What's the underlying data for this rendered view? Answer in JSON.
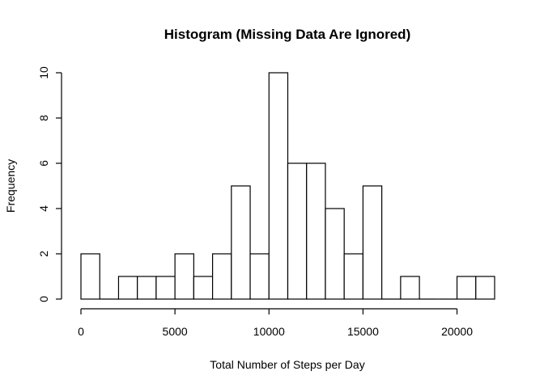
{
  "chart_data": {
    "type": "bar",
    "title": "Histogram (Missing Data Are Ignored)",
    "xlabel": "Total Number of Steps per Day",
    "ylabel": "Frequency",
    "bin_width": 1000,
    "bins": [
      {
        "start": 0,
        "end": 1000,
        "count": 2
      },
      {
        "start": 1000,
        "end": 2000,
        "count": 0
      },
      {
        "start": 2000,
        "end": 3000,
        "count": 1
      },
      {
        "start": 3000,
        "end": 4000,
        "count": 1
      },
      {
        "start": 4000,
        "end": 5000,
        "count": 1
      },
      {
        "start": 5000,
        "end": 6000,
        "count": 2
      },
      {
        "start": 6000,
        "end": 7000,
        "count": 1
      },
      {
        "start": 7000,
        "end": 8000,
        "count": 2
      },
      {
        "start": 8000,
        "end": 9000,
        "count": 5
      },
      {
        "start": 9000,
        "end": 10000,
        "count": 2
      },
      {
        "start": 10000,
        "end": 11000,
        "count": 10
      },
      {
        "start": 11000,
        "end": 12000,
        "count": 6
      },
      {
        "start": 12000,
        "end": 13000,
        "count": 6
      },
      {
        "start": 13000,
        "end": 14000,
        "count": 4
      },
      {
        "start": 14000,
        "end": 15000,
        "count": 2
      },
      {
        "start": 15000,
        "end": 16000,
        "count": 5
      },
      {
        "start": 16000,
        "end": 17000,
        "count": 0
      },
      {
        "start": 17000,
        "end": 18000,
        "count": 1
      },
      {
        "start": 18000,
        "end": 19000,
        "count": 0
      },
      {
        "start": 19000,
        "end": 20000,
        "count": 0
      },
      {
        "start": 20000,
        "end": 21000,
        "count": 1
      },
      {
        "start": 21000,
        "end": 22000,
        "count": 1
      }
    ],
    "xlim": [
      0,
      22000
    ],
    "ylim": [
      0,
      10
    ],
    "x_ticks": [
      0,
      5000,
      10000,
      15000,
      20000
    ],
    "x_tick_labels": [
      "0",
      "5000",
      "10000",
      "15000",
      "20000"
    ],
    "y_ticks": [
      0,
      2,
      4,
      6,
      8,
      10
    ],
    "y_tick_labels": [
      "0",
      "2",
      "4",
      "6",
      "8",
      "10"
    ],
    "grid": false,
    "legend": "none",
    "colors": {
      "bar_fill": "#ffffff",
      "bar_stroke": "#000000"
    }
  }
}
